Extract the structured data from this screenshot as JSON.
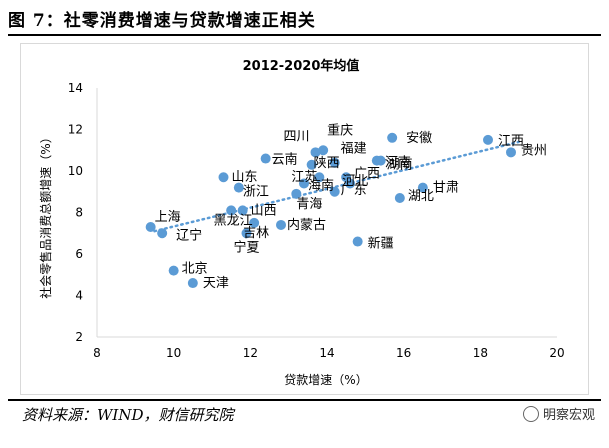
{
  "figure_title": "图 7：社零消费增速与贷款增速正相关",
  "source_note": "资料来源：WIND，财信研究院",
  "watermark": "明察宏观",
  "watermark_icon": "wechat-icon",
  "colors": {
    "point": "#5b9bd5",
    "trend": "#5b9bd5",
    "axis": "#d9d9d9",
    "text": "#000000"
  },
  "chart_data": {
    "type": "scatter",
    "title": "2012-2020年均值",
    "xlabel": "贷款增速（%）",
    "ylabel": "社会零售品消费总额增速（%）",
    "xlim": [
      8,
      20
    ],
    "ylim": [
      2,
      14
    ],
    "xticks": [
      8,
      10,
      12,
      14,
      16,
      18,
      20
    ],
    "yticks": [
      2,
      4,
      6,
      8,
      10,
      12,
      14
    ],
    "grid": false,
    "legend": "none",
    "trendline": {
      "style": "dotted",
      "from": [
        9.5,
        7.1
      ],
      "to": [
        19.0,
        11.4
      ]
    },
    "points": [
      {
        "label": "江西",
        "x": 18.2,
        "y": 11.5
      },
      {
        "label": "贵州",
        "x": 18.8,
        "y": 10.9
      },
      {
        "label": "安徽",
        "x": 15.7,
        "y": 11.6
      },
      {
        "label": "重庆",
        "x": 13.9,
        "y": 11.0
      },
      {
        "label": "四川",
        "x": 13.7,
        "y": 10.9
      },
      {
        "label": "福建",
        "x": 14.2,
        "y": 10.4
      },
      {
        "label": "云南",
        "x": 12.4,
        "y": 10.6
      },
      {
        "label": "陕西",
        "x": 13.6,
        "y": 10.3
      },
      {
        "label": "河北",
        "x": 14.5,
        "y": 9.7
      },
      {
        "label": "河南",
        "x": 15.3,
        "y": 10.5
      },
      {
        "label": "湖南",
        "x": 15.4,
        "y": 10.5
      },
      {
        "label": "江苏",
        "x": 13.8,
        "y": 9.7
      },
      {
        "label": "山东",
        "x": 11.3,
        "y": 9.7
      },
      {
        "label": "广西",
        "x": 14.6,
        "y": 9.4
      },
      {
        "label": "甘肃",
        "x": 16.5,
        "y": 9.2
      },
      {
        "label": "浙江",
        "x": 11.7,
        "y": 9.2
      },
      {
        "label": "湖北",
        "x": 15.9,
        "y": 8.7
      },
      {
        "label": "海南",
        "x": 13.4,
        "y": 9.4
      },
      {
        "label": "广东",
        "x": 14.2,
        "y": 9.0
      },
      {
        "label": "青海",
        "x": 13.2,
        "y": 8.9
      },
      {
        "label": "山西",
        "x": 11.8,
        "y": 8.1
      },
      {
        "label": "上海",
        "x": 9.4,
        "y": 7.3
      },
      {
        "label": "辽宁",
        "x": 9.7,
        "y": 7.0
      },
      {
        "label": "黑龙江",
        "x": 11.5,
        "y": 8.1
      },
      {
        "label": "吉林",
        "x": 12.1,
        "y": 7.5
      },
      {
        "label": "宁夏",
        "x": 11.9,
        "y": 7.0
      },
      {
        "label": "内蒙古",
        "x": 12.8,
        "y": 7.4
      },
      {
        "label": "新疆",
        "x": 14.8,
        "y": 6.6
      },
      {
        "label": "北京",
        "x": 10.0,
        "y": 5.2
      },
      {
        "label": "天津",
        "x": 10.5,
        "y": 4.6
      }
    ]
  }
}
